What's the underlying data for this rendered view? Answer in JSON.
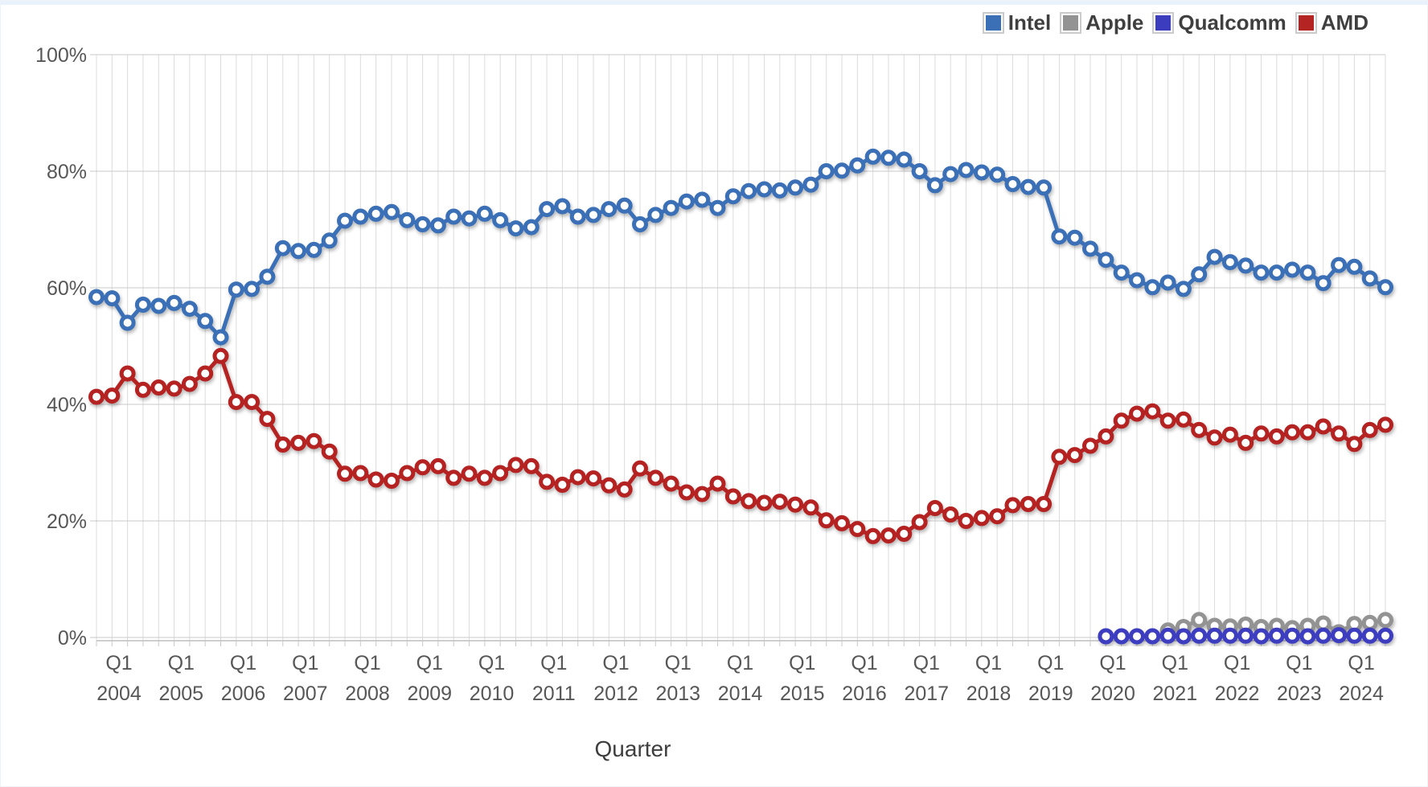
{
  "chart_data": {
    "type": "line",
    "title": "",
    "xlabel": "Quarter",
    "ylabel": "",
    "ylim": [
      0,
      100
    ],
    "grid": "on",
    "legend_position": "top-right",
    "y_tick_values": [
      0,
      20,
      40,
      60,
      80,
      100
    ],
    "y_tick_labels": [
      "0%",
      "20%",
      "40%",
      "60%",
      "80%",
      "100%"
    ],
    "x_ticks": [
      {
        "quarter": "Q1",
        "year": "2004"
      },
      {
        "quarter": "Q1",
        "year": "2005"
      },
      {
        "quarter": "Q1",
        "year": "2006"
      },
      {
        "quarter": "Q1",
        "year": "2007"
      },
      {
        "quarter": "Q1",
        "year": "2008"
      },
      {
        "quarter": "Q1",
        "year": "2009"
      },
      {
        "quarter": "Q1",
        "year": "2010"
      },
      {
        "quarter": "Q1",
        "year": "2011"
      },
      {
        "quarter": "Q1",
        "year": "2012"
      },
      {
        "quarter": "Q1",
        "year": "2013"
      },
      {
        "quarter": "Q1",
        "year": "2014"
      },
      {
        "quarter": "Q1",
        "year": "2015"
      },
      {
        "quarter": "Q1",
        "year": "2016"
      },
      {
        "quarter": "Q1",
        "year": "2017"
      },
      {
        "quarter": "Q1",
        "year": "2018"
      },
      {
        "quarter": "Q1",
        "year": "2019"
      },
      {
        "quarter": "Q1",
        "year": "2020"
      },
      {
        "quarter": "Q1",
        "year": "2021"
      },
      {
        "quarter": "Q1",
        "year": "2022"
      },
      {
        "quarter": "Q1",
        "year": "2023"
      },
      {
        "quarter": "Q1",
        "year": "2024"
      }
    ],
    "x_range": "Q1 2004 - Q4 2024 (quarterly, 84 points)",
    "series": [
      {
        "name": "Intel",
        "color": "#3B70B7",
        "values": [
          58.4,
          58.2,
          54.0,
          57.1,
          56.9,
          57.4,
          56.4,
          54.3,
          51.5,
          59.7,
          59.8,
          61.9,
          66.8,
          66.3,
          66.5,
          68.1,
          71.5,
          72.2,
          72.7,
          73.0,
          71.6,
          70.9,
          70.7,
          72.2,
          71.9,
          72.7,
          71.6,
          70.2,
          70.4,
          73.5,
          74.0,
          72.2,
          72.5,
          73.5,
          74.1,
          70.9,
          72.5,
          73.7,
          74.8,
          75.1,
          73.7,
          75.7,
          76.6,
          76.9,
          76.7,
          77.2,
          77.7,
          80.0,
          80.1,
          81.0,
          82.5,
          82.3,
          82.0,
          80.0,
          77.6,
          79.5,
          80.2,
          79.8,
          79.4,
          77.8,
          77.3,
          77.2,
          68.8,
          68.6,
          66.7,
          64.8,
          62.6,
          61.3,
          60.1,
          60.9,
          59.8,
          62.3,
          65.3,
          64.4,
          63.8,
          62.6,
          62.6,
          63.1,
          62.6,
          60.8,
          63.9,
          63.6,
          61.6,
          60.1
        ]
      },
      {
        "name": "Apple",
        "color": "#939393",
        "values": [
          null,
          null,
          null,
          null,
          null,
          null,
          null,
          null,
          null,
          null,
          null,
          null,
          null,
          null,
          null,
          null,
          null,
          null,
          null,
          null,
          null,
          null,
          null,
          null,
          null,
          null,
          null,
          null,
          null,
          null,
          null,
          null,
          null,
          null,
          null,
          null,
          null,
          null,
          null,
          null,
          null,
          null,
          null,
          null,
          null,
          null,
          null,
          null,
          null,
          null,
          null,
          null,
          null,
          null,
          null,
          null,
          null,
          null,
          null,
          null,
          null,
          null,
          null,
          null,
          null,
          null,
          null,
          null,
          null,
          1.2,
          1.8,
          3.0,
          2.0,
          1.9,
          2.2,
          1.8,
          2.0,
          1.6,
          2.0,
          2.4,
          0.9,
          2.3,
          2.5,
          3.0
        ]
      },
      {
        "name": "Qualcomm",
        "color": "#3C3CBF",
        "values": [
          null,
          null,
          null,
          null,
          null,
          null,
          null,
          null,
          null,
          null,
          null,
          null,
          null,
          null,
          null,
          null,
          null,
          null,
          null,
          null,
          null,
          null,
          null,
          null,
          null,
          null,
          null,
          null,
          null,
          null,
          null,
          null,
          null,
          null,
          null,
          null,
          null,
          null,
          null,
          null,
          null,
          null,
          null,
          null,
          null,
          null,
          null,
          null,
          null,
          null,
          null,
          null,
          null,
          null,
          null,
          null,
          null,
          null,
          null,
          null,
          null,
          null,
          null,
          null,
          null,
          0.2,
          0.2,
          0.2,
          0.2,
          0.3,
          0.2,
          0.3,
          0.3,
          0.3,
          0.3,
          0.2,
          0.3,
          0.3,
          0.2,
          0.3,
          0.4,
          0.3,
          0.3,
          0.3
        ]
      },
      {
        "name": "AMD",
        "color": "#B42423",
        "values": [
          41.3,
          41.5,
          45.3,
          42.5,
          42.9,
          42.7,
          43.5,
          45.3,
          48.3,
          40.4,
          40.4,
          37.5,
          33.1,
          33.4,
          33.7,
          31.9,
          28.1,
          28.2,
          27.1,
          26.9,
          28.2,
          29.2,
          29.4,
          27.4,
          28.1,
          27.4,
          28.2,
          29.6,
          29.4,
          26.7,
          26.2,
          27.5,
          27.3,
          26.1,
          25.4,
          29.0,
          27.4,
          26.4,
          24.9,
          24.6,
          26.4,
          24.2,
          23.4,
          23.1,
          23.3,
          22.8,
          22.3,
          20.1,
          19.6,
          18.6,
          17.4,
          17.5,
          17.8,
          19.8,
          22.2,
          21.1,
          20.0,
          20.5,
          20.8,
          22.7,
          22.9,
          22.9,
          31.0,
          31.3,
          32.9,
          34.5,
          37.2,
          38.4,
          38.8,
          37.2,
          37.4,
          35.6,
          34.3,
          34.8,
          33.4,
          35.0,
          34.5,
          35.2,
          35.2,
          36.2,
          35.0,
          33.2,
          35.6,
          36.5
        ]
      }
    ],
    "style": {
      "grid_vertical_color": "#dcdcdc",
      "grid_horizontal_color": "#c9c9c9",
      "axis_line_color": "#bdbdbd",
      "tick_label_color": "#575757",
      "axis_title_color": "#3e3e3e",
      "legend_text_color": "#3f3f3f",
      "marker_fill": "#ffffff"
    }
  }
}
